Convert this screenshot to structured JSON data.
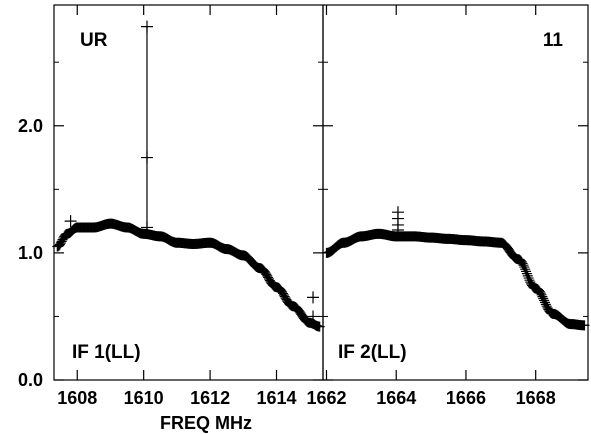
{
  "chart_data": [
    {
      "type": "scatter",
      "corner_label": "UR",
      "panel_label": "IF 1(LL)",
      "xlabel": "FREQ MHz",
      "ylabel": "",
      "xlim": [
        1607.3,
        1615.4
      ],
      "ylim": [
        0.0,
        2.95
      ],
      "xticks": [
        1608,
        1610,
        1612,
        1614
      ],
      "xtick_labels": [
        "1608",
        "1610",
        "1612",
        "1614"
      ],
      "yticks": [
        0.0,
        1.0,
        2.0
      ],
      "ytick_labels": [
        "0.0",
        "1.0",
        "2.0"
      ],
      "grid": false,
      "marker": "plus",
      "series": [
        {
          "x": [
            1607.4,
            1607.7,
            1608.0,
            1608.5,
            1609.0,
            1609.5,
            1610.0,
            1610.5,
            1611.0,
            1611.5,
            1612.0,
            1612.5,
            1613.0,
            1613.5,
            1614.0,
            1614.5,
            1615.0,
            1615.3
          ],
          "y": [
            1.05,
            1.15,
            1.2,
            1.2,
            1.23,
            1.2,
            1.15,
            1.13,
            1.08,
            1.07,
            1.08,
            1.03,
            0.98,
            0.88,
            0.73,
            0.58,
            0.45,
            0.42
          ]
        }
      ],
      "outliers": [
        {
          "x": 1610.1,
          "y": 2.78
        },
        {
          "x": 1610.1,
          "y": 1.75
        },
        {
          "x": 1610.1,
          "y": 1.2
        },
        {
          "x": 1607.8,
          "y": 1.25
        },
        {
          "x": 1615.1,
          "y": 0.65
        },
        {
          "x": 1615.1,
          "y": 0.5
        }
      ]
    },
    {
      "type": "scatter",
      "corner_label": "11",
      "panel_label": "IF 2(LL)",
      "xlabel": "FREQ MHz",
      "ylabel": "",
      "xlim": [
        1661.9,
        1669.5
      ],
      "ylim": [
        0.0,
        2.95
      ],
      "xticks": [
        1662,
        1664,
        1666,
        1668
      ],
      "xtick_labels": [
        "1662",
        "1664",
        "1666",
        "1668"
      ],
      "yticks": [
        0.0,
        1.0,
        2.0
      ],
      "ytick_labels": [
        "",
        "",
        ""
      ],
      "grid": false,
      "marker": "plus",
      "series": [
        {
          "x": [
            1662.0,
            1662.5,
            1663.0,
            1663.5,
            1664.0,
            1664.5,
            1665.0,
            1665.5,
            1666.0,
            1666.5,
            1667.0,
            1667.5,
            1668.0,
            1668.5,
            1669.0,
            1669.4
          ],
          "y": [
            1.0,
            1.08,
            1.13,
            1.15,
            1.13,
            1.13,
            1.12,
            1.11,
            1.1,
            1.09,
            1.08,
            0.95,
            0.72,
            0.52,
            0.44,
            0.43
          ]
        }
      ],
      "outliers": [
        {
          "x": 1664.05,
          "y": 1.32
        },
        {
          "x": 1664.05,
          "y": 1.27
        },
        {
          "x": 1664.05,
          "y": 1.22
        },
        {
          "x": 1664.05,
          "y": 1.18
        }
      ]
    }
  ]
}
